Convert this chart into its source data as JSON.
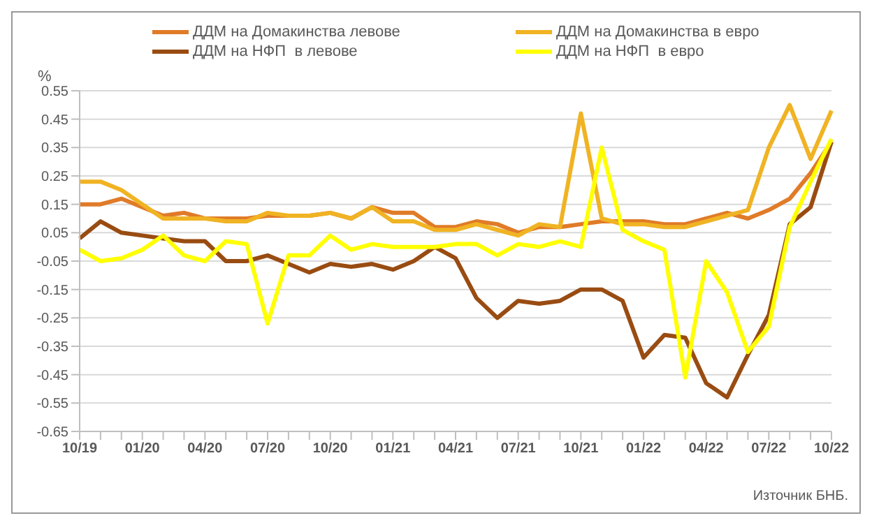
{
  "chart_data": {
    "type": "line",
    "ylabel": "%",
    "annotations": [
      "Източник БНБ."
    ],
    "categories": [
      "10/19",
      null,
      null,
      "01/20",
      null,
      null,
      "04/20",
      null,
      null,
      "07/20",
      null,
      null,
      "10/20",
      null,
      null,
      "01/21",
      null,
      null,
      "04/21",
      null,
      null,
      "07/21",
      null,
      null,
      "10/21",
      null,
      null,
      "01/22",
      null,
      null,
      "04/22",
      null,
      null,
      "07/22",
      null,
      null,
      "10/22"
    ],
    "series": [
      {
        "name": "ДДМ на Домакинства левове",
        "color": "#e07b28",
        "values": [
          0.15,
          0.15,
          0.17,
          0.14,
          0.11,
          0.12,
          0.1,
          0.1,
          0.1,
          0.11,
          0.11,
          0.11,
          0.12,
          0.1,
          0.14,
          0.12,
          0.12,
          0.07,
          0.07,
          0.09,
          0.08,
          0.05,
          0.07,
          0.07,
          0.08,
          0.09,
          0.09,
          0.09,
          0.08,
          0.08,
          0.1,
          0.12,
          0.1,
          0.13,
          0.17,
          0.26,
          0.37
        ]
      },
      {
        "name": "ДДМ на Домакинства в евро",
        "color": "#f0b323",
        "values": [
          0.23,
          0.23,
          0.2,
          0.15,
          0.1,
          0.1,
          0.1,
          0.09,
          0.09,
          0.12,
          0.11,
          0.11,
          0.12,
          0.1,
          0.14,
          0.09,
          0.09,
          0.06,
          0.06,
          0.08,
          0.06,
          0.04,
          0.08,
          0.07,
          0.47,
          0.1,
          0.08,
          0.08,
          0.07,
          0.07,
          0.09,
          0.11,
          0.13,
          0.35,
          0.5,
          0.31,
          0.48
        ]
      },
      {
        "name": "ДДМ на НФП  в левове",
        "color": "#994c12",
        "values": [
          0.03,
          0.09,
          0.05,
          0.04,
          0.03,
          0.02,
          0.02,
          -0.05,
          -0.05,
          -0.03,
          -0.06,
          -0.09,
          -0.06,
          -0.07,
          -0.06,
          -0.08,
          -0.05,
          0.0,
          -0.04,
          -0.18,
          -0.25,
          -0.19,
          -0.2,
          -0.19,
          -0.15,
          -0.15,
          -0.19,
          -0.39,
          -0.31,
          -0.32,
          -0.48,
          -0.53,
          -0.38,
          -0.24,
          0.08,
          0.14,
          0.37
        ]
      },
      {
        "name": "ДДМ на НФП  в евро",
        "color": "#ffff00",
        "values": [
          -0.01,
          -0.05,
          -0.04,
          -0.01,
          0.04,
          -0.03,
          -0.05,
          0.02,
          0.01,
          -0.27,
          -0.03,
          -0.03,
          0.04,
          -0.01,
          0.01,
          0.0,
          0.0,
          0.0,
          0.01,
          0.01,
          -0.03,
          0.01,
          0.0,
          0.02,
          0.0,
          0.35,
          0.06,
          0.02,
          -0.01,
          -0.46,
          -0.05,
          -0.16,
          -0.37,
          -0.28,
          0.07,
          0.23,
          0.38
        ]
      }
    ],
    "ylim": [
      -0.65,
      0.55
    ],
    "yticks": [
      0.55,
      0.45,
      0.35,
      0.25,
      0.15,
      0.05,
      -0.05,
      -0.15,
      -0.25,
      -0.35,
      -0.45,
      -0.55,
      -0.65
    ],
    "grid": "y",
    "legend": "top",
    "marker": "none",
    "line_style": "solid"
  }
}
